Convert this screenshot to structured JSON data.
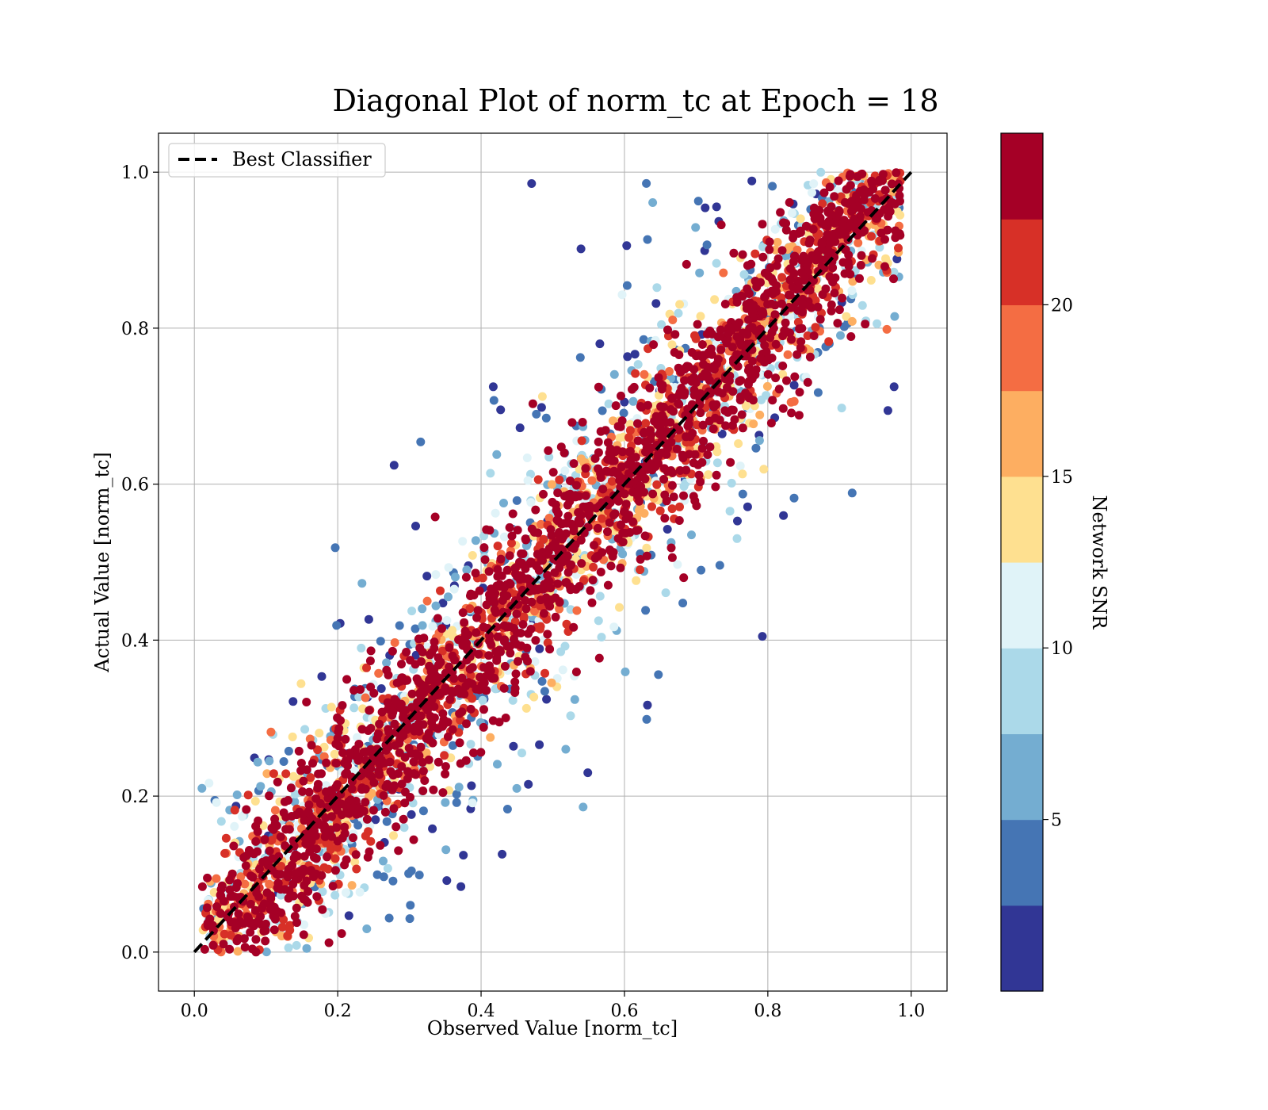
{
  "chart_data": {
    "type": "scatter",
    "title": "Diagonal Plot of norm_tc at Epoch = 18",
    "xlabel": "Observed Value [norm_tc]",
    "ylabel": "Actual Value [norm_tc]",
    "xlim": [
      -0.05,
      1.05
    ],
    "ylim": [
      -0.05,
      1.05
    ],
    "xticks": [
      "0.0",
      "0.2",
      "0.4",
      "0.6",
      "0.8",
      "1.0"
    ],
    "yticks": [
      "0.0",
      "0.2",
      "0.4",
      "0.6",
      "0.8",
      "1.0"
    ],
    "grid": true,
    "legend": {
      "position": "upper-left",
      "entries": [
        {
          "label": "Best Classifier",
          "style": "black dashed line"
        }
      ]
    },
    "reference_line": {
      "label": "Best Classifier",
      "x": [
        0.0,
        1.0
      ],
      "y": [
        0.0,
        1.0
      ],
      "color": "#000000",
      "style": "dashed"
    },
    "point_distribution": {
      "x_range": [
        0.0,
        1.0
      ],
      "y_range": [
        0.0,
        1.0
      ],
      "relation": "points concentrated along the diagonal y = x; high-SNR points lie close to the diagonal, low-SNR points scatter widely toward the upper-left and lower-right",
      "color_variable": "Network SNR"
    },
    "colorbar": {
      "label": "Network SNR",
      "ticks": [
        "5",
        "10",
        "15",
        "20"
      ],
      "tick_values": [
        5,
        10,
        15,
        20
      ],
      "range": [
        0,
        25
      ],
      "colors": [
        "#313695",
        "#4575b4",
        "#74add1",
        "#abd9e9",
        "#e0f3f8",
        "#fee090",
        "#fdae61",
        "#f46d43",
        "#d73027",
        "#a50026"
      ]
    }
  }
}
